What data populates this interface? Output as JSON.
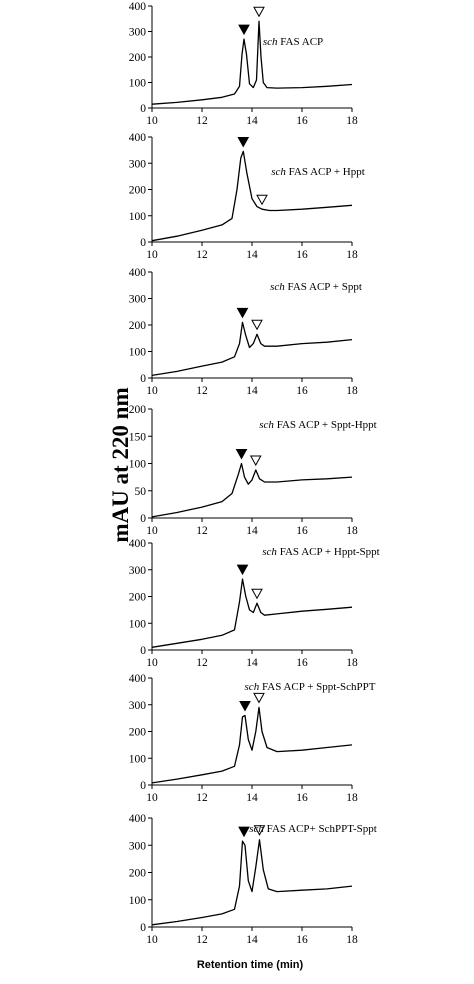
{
  "figure": {
    "ylabel": "mAU at 220 nm",
    "xlabel": "Retention time (min)"
  },
  "chart_data": [
    {
      "type": "line",
      "label_italic": "sch",
      "label_rest": " FAS ACP",
      "xlim": [
        10,
        18
      ],
      "ylim": [
        0,
        400
      ],
      "xticks": [
        10,
        12,
        14,
        16,
        18
      ],
      "yticks": [
        0,
        100,
        200,
        300,
        400
      ],
      "series": [
        {
          "x": [
            10,
            11,
            12,
            12.8,
            13.3,
            13.5,
            13.6,
            13.68,
            13.78,
            13.9,
            14.05,
            14.18,
            14.28,
            14.36,
            14.45,
            14.6,
            15,
            16,
            17,
            18
          ],
          "y": [
            15,
            22,
            32,
            42,
            55,
            85,
            210,
            270,
            210,
            95,
            80,
            110,
            340,
            200,
            100,
            80,
            78,
            80,
            85,
            92
          ]
        }
      ],
      "markers": [
        {
          "kind": "filled-triangle",
          "x": 13.68,
          "y": 270
        },
        {
          "kind": "open-triangle",
          "x": 14.28,
          "y": 340
        }
      ]
    },
    {
      "type": "line",
      "label_italic": "sch",
      "label_rest": " FAS ACP + Hppt",
      "xlim": [
        10,
        18
      ],
      "ylim": [
        0,
        400
      ],
      "xticks": [
        10,
        12,
        14,
        16,
        18
      ],
      "yticks": [
        0,
        100,
        200,
        300,
        400
      ],
      "series": [
        {
          "x": [
            10,
            11,
            12,
            12.8,
            13.2,
            13.4,
            13.55,
            13.65,
            13.8,
            14,
            14.2,
            14.4,
            14.7,
            15,
            16,
            17,
            18
          ],
          "y": [
            5,
            22,
            45,
            65,
            90,
            200,
            320,
            345,
            260,
            165,
            135,
            125,
            120,
            120,
            125,
            132,
            140
          ]
        }
      ],
      "markers": [
        {
          "kind": "filled-triangle",
          "x": 13.65,
          "y": 345
        },
        {
          "kind": "open-triangle",
          "x": 14.4,
          "y": 125
        }
      ]
    },
    {
      "type": "line",
      "label_italic": "sch",
      "label_rest": " FAS ACP + Sppt",
      "xlim": [
        10,
        18
      ],
      "ylim": [
        0,
        400
      ],
      "xticks": [
        10,
        12,
        14,
        16,
        18
      ],
      "yticks": [
        0,
        100,
        200,
        300,
        400
      ],
      "series": [
        {
          "x": [
            10,
            11,
            12,
            12.8,
            13.3,
            13.5,
            13.62,
            13.75,
            13.9,
            14.05,
            14.2,
            14.35,
            14.5,
            15,
            16,
            17,
            18
          ],
          "y": [
            10,
            25,
            45,
            60,
            80,
            130,
            210,
            160,
            115,
            130,
            165,
            130,
            120,
            120,
            130,
            135,
            145
          ]
        }
      ],
      "markers": [
        {
          "kind": "filled-triangle",
          "x": 13.62,
          "y": 210
        },
        {
          "kind": "open-triangle",
          "x": 14.2,
          "y": 165
        }
      ]
    },
    {
      "type": "line",
      "label_italic": "sch",
      "label_rest": " FAS ACP + Sppt-Hppt",
      "xlim": [
        10,
        18
      ],
      "ylim": [
        0,
        200
      ],
      "xticks": [
        10,
        12,
        14,
        16,
        18
      ],
      "yticks": [
        0,
        50,
        100,
        150,
        200
      ],
      "series": [
        {
          "x": [
            10,
            11,
            12,
            12.8,
            13.2,
            13.45,
            13.58,
            13.7,
            13.85,
            14,
            14.15,
            14.3,
            14.5,
            15,
            16,
            17,
            18
          ],
          "y": [
            2,
            10,
            20,
            30,
            45,
            80,
            100,
            75,
            62,
            70,
            88,
            72,
            66,
            66,
            70,
            72,
            75
          ]
        }
      ],
      "markers": [
        {
          "kind": "filled-triangle",
          "x": 13.58,
          "y": 100
        },
        {
          "kind": "open-triangle",
          "x": 14.15,
          "y": 88
        }
      ]
    },
    {
      "type": "line",
      "label_italic": "sch",
      "label_rest": " FAS ACP + Hppt-Sppt",
      "xlim": [
        10,
        18
      ],
      "ylim": [
        0,
        400
      ],
      "xticks": [
        10,
        12,
        14,
        16,
        18
      ],
      "yticks": [
        0,
        100,
        200,
        300,
        400
      ],
      "series": [
        {
          "x": [
            10,
            11,
            12,
            12.8,
            13.3,
            13.5,
            13.62,
            13.75,
            13.9,
            14.05,
            14.2,
            14.35,
            14.5,
            15,
            16,
            17,
            18
          ],
          "y": [
            10,
            25,
            40,
            55,
            75,
            180,
            265,
            200,
            150,
            140,
            175,
            140,
            130,
            135,
            145,
            152,
            160
          ]
        }
      ],
      "markers": [
        {
          "kind": "filled-triangle",
          "x": 13.62,
          "y": 265
        },
        {
          "kind": "open-triangle",
          "x": 14.2,
          "y": 175
        }
      ]
    },
    {
      "type": "line",
      "label_italic": "sch",
      "label_rest": " FAS ACP + Sppt-SchPPT",
      "xlim": [
        10,
        18
      ],
      "ylim": [
        0,
        400
      ],
      "xticks": [
        10,
        12,
        14,
        16,
        18
      ],
      "yticks": [
        0,
        100,
        200,
        300,
        400
      ],
      "series": [
        {
          "x": [
            10,
            11,
            12,
            12.8,
            13.3,
            13.5,
            13.62,
            13.72,
            13.85,
            14,
            14.15,
            14.28,
            14.4,
            14.6,
            15,
            16,
            17,
            18
          ],
          "y": [
            8,
            22,
            38,
            52,
            70,
            150,
            255,
            260,
            170,
            130,
            200,
            290,
            200,
            140,
            125,
            130,
            140,
            150
          ]
        }
      ],
      "markers": [
        {
          "kind": "filled-triangle",
          "x": 13.72,
          "y": 260
        },
        {
          "kind": "open-triangle",
          "x": 14.28,
          "y": 290
        }
      ]
    },
    {
      "type": "line",
      "label_italic": "sch",
      "label_rest": " FAS ACP+ SchPPT-Sppt",
      "xlim": [
        10,
        18
      ],
      "ylim": [
        0,
        400
      ],
      "xticks": [
        10,
        12,
        14,
        16,
        18
      ],
      "yticks": [
        0,
        100,
        200,
        300,
        400
      ],
      "series": [
        {
          "x": [
            10,
            11,
            12,
            12.8,
            13.3,
            13.5,
            13.62,
            13.72,
            13.85,
            14,
            14.15,
            14.3,
            14.45,
            14.65,
            15,
            16,
            17,
            18
          ],
          "y": [
            8,
            20,
            35,
            48,
            65,
            150,
            315,
            300,
            170,
            130,
            220,
            320,
            210,
            140,
            130,
            135,
            140,
            150
          ]
        }
      ],
      "markers": [
        {
          "kind": "filled-triangle",
          "x": 13.68,
          "y": 315
        },
        {
          "kind": "open-triangle",
          "x": 14.3,
          "y": 320
        }
      ]
    }
  ]
}
